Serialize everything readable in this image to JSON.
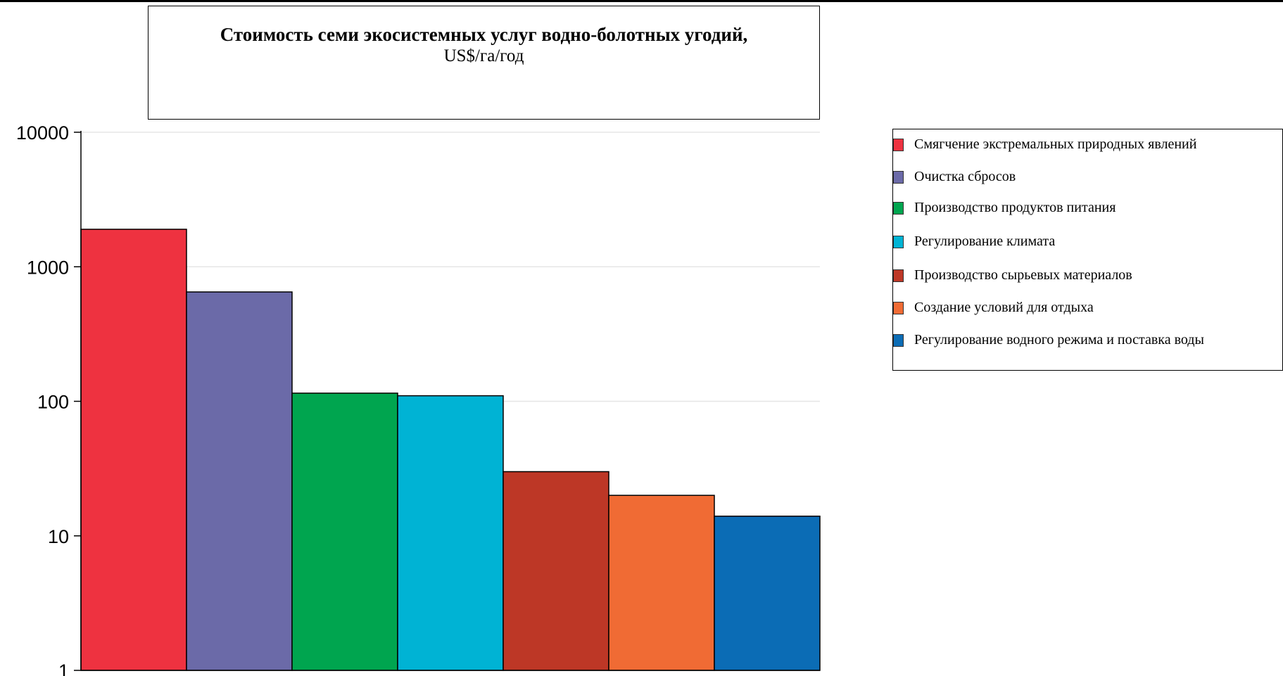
{
  "chart_data": {
    "type": "bar",
    "title": "Стоимость семи экосистемных услуг водно-болотных угодий,",
    "subtitle": "US$/га/год",
    "xlabel": "",
    "ylabel": "",
    "yscale": "log",
    "ylim": [
      1,
      10000
    ],
    "yticks": [
      1,
      10,
      100,
      1000,
      10000
    ],
    "ytick_labels": [
      "1",
      "10",
      "100",
      "1000",
      "10000"
    ],
    "grid": true,
    "legend_position": "right",
    "categories": [
      "Смягчение экстремальных природных явлений",
      "Очистка сбросов",
      "Производство продуктов питания",
      "Регулирование климата",
      "Производство сырьевых материалов",
      "Создание условий для отдыха",
      "Регулирование водного режима и поставка воды"
    ],
    "values": [
      1900,
      650,
      115,
      110,
      30,
      20,
      14
    ],
    "colors": [
      "#ee3240",
      "#6b6aa8",
      "#00a54f",
      "#00b3d4",
      "#bd3726",
      "#f06b34",
      "#0b6cb5"
    ]
  }
}
